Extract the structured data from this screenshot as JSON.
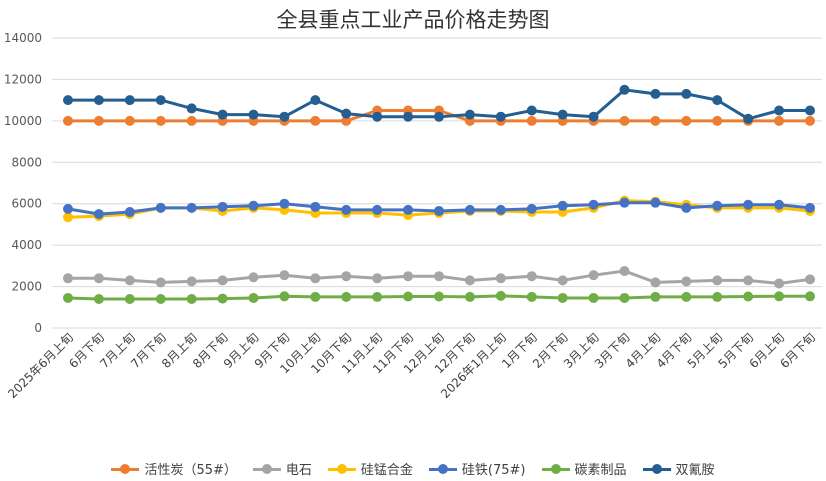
{
  "chart_data": {
    "type": "line",
    "title": "全县重点工业产品价格走势图",
    "xlabel": "",
    "ylabel": "",
    "ylim": [
      0,
      14000
    ],
    "yticks": [
      0,
      2000,
      4000,
      6000,
      8000,
      10000,
      12000,
      14000
    ],
    "grid": true,
    "legend_position": "bottom",
    "categories": [
      "2025年6月上旬",
      "6月下旬",
      "7月上旬",
      "7月下旬",
      "8月上旬",
      "8月下旬",
      "9月上旬",
      "9月下旬",
      "10月上旬",
      "10月下旬",
      "11月上旬",
      "11月下旬",
      "12月上旬",
      "12月下旬",
      "2026年1月上旬",
      "1月下旬",
      "2月下旬",
      "3月上旬",
      "3月下旬",
      "4月上旬",
      "4月下旬",
      "5月上旬",
      "5月下旬",
      "6月上旬",
      "6月下旬"
    ],
    "series": [
      {
        "name": "活性炭（55#）",
        "color": "#ED7D31",
        "values": [
          10000,
          10000,
          10000,
          10000,
          10000,
          10000,
          10000,
          10000,
          10000,
          10000,
          10500,
          10500,
          10500,
          10000,
          10000,
          10000,
          10000,
          10000,
          10000,
          10000,
          10000,
          10000,
          10000,
          10000,
          10000
        ]
      },
      {
        "name": "电石",
        "color": "#A5A5A5",
        "values": [
          2400,
          2400,
          2300,
          2200,
          2250,
          2300,
          2450,
          2550,
          2400,
          2500,
          2400,
          2500,
          2500,
          2300,
          2400,
          2500,
          2300,
          2550,
          2750,
          2200,
          2250,
          2300,
          2300,
          2150,
          2350
        ]
      },
      {
        "name": "硅锰合金",
        "color": "#FFC000",
        "values": [
          5350,
          5400,
          5500,
          5800,
          5800,
          5650,
          5800,
          5700,
          5550,
          5550,
          5550,
          5450,
          5550,
          5650,
          5650,
          5600,
          5600,
          5800,
          6150,
          6100,
          5950,
          5800,
          5800,
          5800,
          5650
        ]
      },
      {
        "name": "硅铁(75#)",
        "color": "#4472C4",
        "values": [
          5750,
          5500,
          5600,
          5800,
          5800,
          5850,
          5900,
          6000,
          5850,
          5700,
          5700,
          5700,
          5650,
          5700,
          5700,
          5750,
          5900,
          5950,
          6050,
          6050,
          5800,
          5900,
          5950,
          5950,
          5800
        ]
      },
      {
        "name": "碳素制品",
        "color": "#70AD47",
        "values": [
          1450,
          1400,
          1400,
          1400,
          1400,
          1420,
          1450,
          1530,
          1500,
          1500,
          1500,
          1520,
          1520,
          1500,
          1550,
          1500,
          1450,
          1450,
          1450,
          1500,
          1500,
          1500,
          1520,
          1530,
          1530
        ]
      },
      {
        "name": "双氰胺",
        "color": "#255E91",
        "values": [
          11000,
          11000,
          11000,
          11000,
          10600,
          10300,
          10300,
          10200,
          11000,
          10350,
          10200,
          10200,
          10200,
          10300,
          10200,
          10500,
          10300,
          10200,
          11500,
          11300,
          11300,
          11000,
          10100,
          10500,
          10500
        ]
      }
    ]
  }
}
